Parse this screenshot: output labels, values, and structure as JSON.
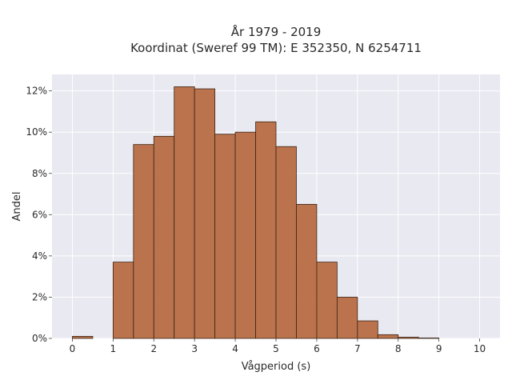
{
  "chart_data": {
    "type": "bar",
    "title": [
      "År 1979 - 2019",
      "Koordinat (Sweref 99 TM): E 352350, N 6254711"
    ],
    "xlabel": "Vågperiod (s)",
    "ylabel": "Andel",
    "bin_width": 0.5,
    "bins": [
      {
        "x0": 0.0,
        "x1": 0.5,
        "value": 0.1
      },
      {
        "x0": 0.5,
        "x1": 1.0,
        "value": 0.0
      },
      {
        "x0": 1.0,
        "x1": 1.5,
        "value": 3.7
      },
      {
        "x0": 1.5,
        "x1": 2.0,
        "value": 9.4
      },
      {
        "x0": 2.0,
        "x1": 2.5,
        "value": 9.8
      },
      {
        "x0": 2.5,
        "x1": 3.0,
        "value": 12.2
      },
      {
        "x0": 3.0,
        "x1": 3.5,
        "value": 12.1
      },
      {
        "x0": 3.5,
        "x1": 4.0,
        "value": 9.9
      },
      {
        "x0": 4.0,
        "x1": 4.5,
        "value": 10.0
      },
      {
        "x0": 4.5,
        "x1": 5.0,
        "value": 10.5
      },
      {
        "x0": 5.0,
        "x1": 5.5,
        "value": 9.3
      },
      {
        "x0": 5.5,
        "x1": 6.0,
        "value": 6.5
      },
      {
        "x0": 6.0,
        "x1": 6.5,
        "value": 3.7
      },
      {
        "x0": 6.5,
        "x1": 7.0,
        "value": 2.0
      },
      {
        "x0": 7.0,
        "x1": 7.5,
        "value": 0.85
      },
      {
        "x0": 7.5,
        "x1": 8.0,
        "value": 0.18
      },
      {
        "x0": 8.0,
        "x1": 8.5,
        "value": 0.06
      },
      {
        "x0": 8.5,
        "x1": 9.0,
        "value": 0.02
      }
    ],
    "xlim": [
      -0.5,
      10.5
    ],
    "ylim": [
      0,
      12.8
    ],
    "xticks": [
      0,
      1,
      2,
      3,
      4,
      5,
      6,
      7,
      8,
      9,
      10
    ],
    "xtick_labels": [
      "0",
      "1",
      "2",
      "3",
      "4",
      "5",
      "6",
      "7",
      "8",
      "9",
      "10"
    ],
    "yticks": [
      0,
      2,
      4,
      6,
      8,
      10,
      12
    ],
    "ytick_labels": [
      "0%",
      "2%",
      "4%",
      "6%",
      "8%",
      "10%",
      "12%"
    ],
    "grid": true,
    "colors": {
      "bar_fill": "#b5663a",
      "bar_stroke": "#3b2416",
      "plot_bg": "#e9e9f1",
      "grid": "#ffffff"
    }
  }
}
